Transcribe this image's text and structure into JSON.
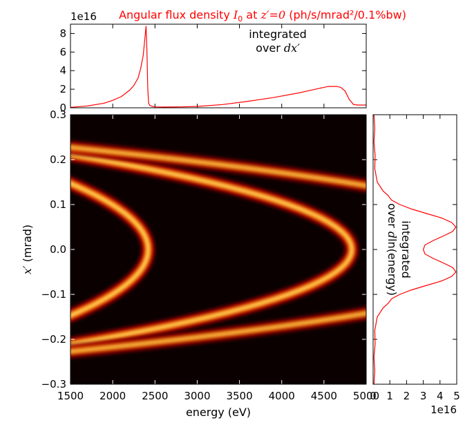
{
  "title": {
    "prefix": "Angular flux density ",
    "sym": "I",
    "sub": "0",
    "mid": " at ",
    "cond": "z′=0",
    "units": " (ph/s/mrad²/0.1%bw)"
  },
  "top_panel": {
    "annotation_line1": "integrated",
    "annotation_line2_prefix": "over ",
    "annotation_line2_var": "dx′",
    "multiplier": "1e16"
  },
  "right_panel": {
    "annotation_line1": "integrated",
    "annotation_line2_prefix": "over ",
    "annotation_line2_var": "d",
    "annotation_line2_suffix": "ln(energy)",
    "multiplier": "1e16"
  },
  "main_panel": {
    "xlabel": "energy (eV)",
    "ylabel_var": "x′",
    "ylabel_units": " (mrad)"
  },
  "colors": {
    "line": "#ff0000",
    "colormap": "hot",
    "background": "#0b0000"
  },
  "chart_data": [
    {
      "type": "heatmap",
      "x_range": [
        1500,
        5000
      ],
      "y_range": [
        -0.3,
        0.3
      ],
      "x_ticks": [
        1500,
        2000,
        2500,
        3000,
        3500,
        4000,
        4500,
        5000
      ],
      "y_ticks": [
        -0.3,
        -0.2,
        -0.1,
        0.0,
        0.1,
        0.2,
        0.3
      ],
      "x_tick_labels": [
        "1500",
        "2000",
        "2500",
        "3000",
        "3500",
        "4000",
        "4500",
        "5000"
      ],
      "y_tick_labels": [
        "−0.3",
        "−0.2",
        "−0.1",
        "0.0",
        "0.1",
        "0.2",
        "0.3"
      ],
      "harmonics": [
        {
          "vertex_energy": 2420,
          "span": 720,
          "edge_offset": 0.13,
          "side": "left",
          "peak": 1.0
        },
        {
          "vertex_energy": 4830,
          "span": 1920,
          "edge_offset": 0.16,
          "side": "left",
          "peak": 0.95
        },
        {
          "vertex_energy": 7250,
          "span": 2850,
          "edge_offset": 0.16,
          "side": "left",
          "peak": 0.75
        }
      ]
    },
    {
      "type": "line",
      "x_range": [
        1500,
        5000
      ],
      "ylim": [
        0,
        9
      ],
      "y_ticks": [
        0,
        2,
        4,
        6,
        8
      ],
      "y_tick_labels": [
        "0",
        "2",
        "4",
        "6",
        "8"
      ],
      "x": [
        1500,
        1700,
        1900,
        2000,
        2100,
        2200,
        2250,
        2300,
        2330,
        2360,
        2380,
        2395,
        2405,
        2415,
        2425,
        2440,
        2470,
        2500,
        2600,
        2800,
        3000,
        3300,
        3600,
        3900,
        4200,
        4400,
        4550,
        4650,
        4700,
        4750,
        4800,
        4850,
        4900,
        5000
      ],
      "y": [
        0.05,
        0.2,
        0.5,
        0.8,
        1.2,
        1.9,
        2.4,
        3.2,
        4.2,
        5.6,
        7.4,
        8.8,
        6.0,
        2.0,
        0.5,
        0.25,
        0.15,
        0.1,
        0.08,
        0.1,
        0.15,
        0.35,
        0.7,
        1.1,
        1.6,
        2.0,
        2.3,
        2.3,
        2.2,
        1.8,
        0.9,
        0.35,
        0.3,
        0.3
      ]
    },
    {
      "type": "line",
      "orientation": "vertical",
      "xlim": [
        0,
        5
      ],
      "x_ticks": [
        0,
        1,
        2,
        3,
        4,
        5
      ],
      "x_tick_labels": [
        "0",
        "1",
        "2",
        "3",
        "4",
        "5"
      ],
      "y_range": [
        -0.3,
        0.3
      ],
      "y": [
        -0.3,
        -0.27,
        -0.24,
        -0.21,
        -0.18,
        -0.15,
        -0.13,
        -0.12,
        -0.115,
        -0.11,
        -0.1,
        -0.09,
        -0.08,
        -0.07,
        -0.06,
        -0.05,
        -0.04,
        -0.03,
        -0.02,
        -0.01,
        0.0,
        0.01,
        0.02,
        0.03,
        0.04,
        0.05,
        0.06,
        0.07,
        0.08,
        0.09,
        0.1,
        0.11,
        0.115,
        0.12,
        0.13,
        0.15,
        0.18,
        0.21,
        0.24,
        0.27,
        0.3
      ],
      "x": [
        0.05,
        0.1,
        0.05,
        0.12,
        0.1,
        0.25,
        0.6,
        0.9,
        1.0,
        1.1,
        1.6,
        2.3,
        3.2,
        4.1,
        4.7,
        4.95,
        4.75,
        4.2,
        3.6,
        3.1,
        3.0,
        3.1,
        3.6,
        4.2,
        4.75,
        4.95,
        4.7,
        4.1,
        3.2,
        2.3,
        1.6,
        1.1,
        1.0,
        0.9,
        0.6,
        0.25,
        0.1,
        0.12,
        0.05,
        0.1,
        0.05
      ]
    }
  ]
}
